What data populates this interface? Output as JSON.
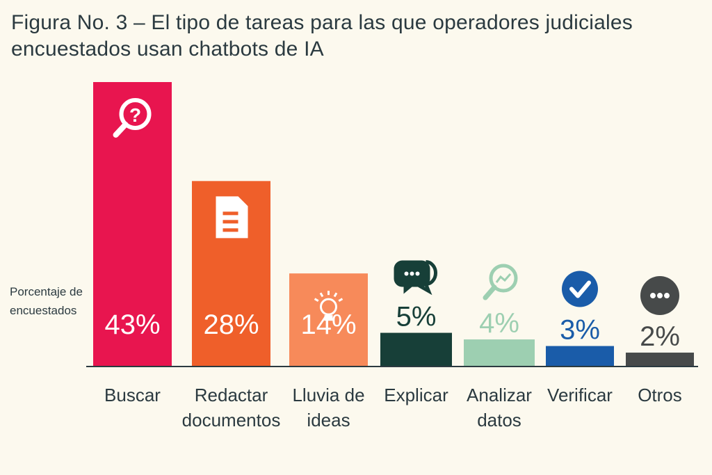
{
  "chart_data": {
    "type": "bar",
    "title": "Figura No. 3 – El tipo de tareas para las que operadores judiciales encuestados usan chatbots de IA",
    "ylabel": "Porcentaje de encuestados",
    "xlabel": "",
    "ylim": [
      0,
      43
    ],
    "grid": false,
    "categories": [
      "Buscar",
      "Redactar documentos",
      "Lluvia de ideas",
      "Explicar",
      "Analizar datos",
      "Verificar",
      "Otros"
    ],
    "category_lines": [
      [
        "Buscar"
      ],
      [
        "Redactar",
        "documentos"
      ],
      [
        "Lluvia de",
        "ideas"
      ],
      [
        "Explicar"
      ],
      [
        "Analizar",
        "datos"
      ],
      [
        "Verificar"
      ],
      [
        "Otros"
      ]
    ],
    "values": [
      43,
      28,
      14,
      5,
      4,
      3,
      2
    ],
    "value_labels": [
      "43%",
      "28%",
      "14%",
      "5%",
      "4%",
      "3%",
      "2%"
    ],
    "colors": [
      "#e8154f",
      "#ef5f2a",
      "#f78a5a",
      "#173f38",
      "#9dcfb1",
      "#1a5ca9",
      "#474a4a"
    ],
    "icons": [
      "search-question-icon",
      "document-icon",
      "lightbulb-icon",
      "chat-bubbles-icon",
      "chart-magnifier-icon",
      "check-circle-icon",
      "more-circle-icon"
    ]
  }
}
